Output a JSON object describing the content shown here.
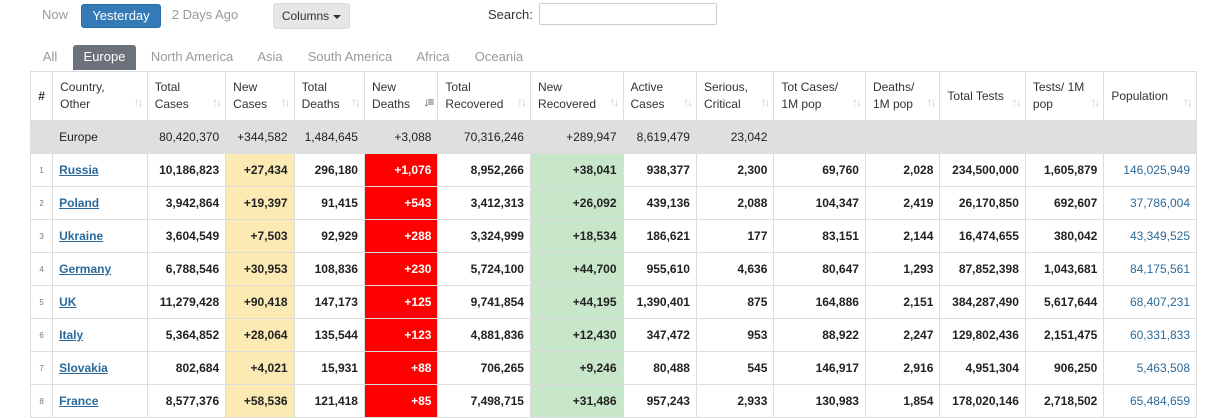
{
  "day_tabs": [
    "Now",
    "Yesterday",
    "2 Days Ago"
  ],
  "active_day": "Yesterday",
  "columns_label": "Columns",
  "search_label": "Search:",
  "search_value": "",
  "region_tabs": [
    "All",
    "Europe",
    "North America",
    "Asia",
    "South America",
    "Africa",
    "Oceania"
  ],
  "active_region": "Europe",
  "colors": {
    "primary_blue": "#337ab7",
    "new_cases_bg": "#fbeab4",
    "new_deaths_bg": "#ff0000",
    "new_recovered_bg": "#c8e6c9",
    "link_blue": "#2b6a9b"
  },
  "columns": [
    {
      "key": "num",
      "label": "#"
    },
    {
      "key": "country",
      "label": "Country, Other"
    },
    {
      "key": "total_cases",
      "label": "Total Cases"
    },
    {
      "key": "new_cases",
      "label": "New Cases"
    },
    {
      "key": "total_deaths",
      "label": "Total Deaths"
    },
    {
      "key": "new_deaths",
      "label": "New Deaths"
    },
    {
      "key": "total_recovered",
      "label": "Total Recovered"
    },
    {
      "key": "new_recovered",
      "label": "New Recovered"
    },
    {
      "key": "active_cases",
      "label": "Active Cases"
    },
    {
      "key": "serious",
      "label": "Serious, Critical"
    },
    {
      "key": "cases_per_m",
      "label": "Tot Cases/ 1M pop"
    },
    {
      "key": "deaths_per_m",
      "label": "Deaths/ 1M pop"
    },
    {
      "key": "total_tests",
      "label": "Total Tests"
    },
    {
      "key": "tests_per_m",
      "label": "Tests/ 1M pop"
    },
    {
      "key": "population",
      "label": "Population"
    }
  ],
  "total_row": {
    "country": "Europe",
    "total_cases": "80,420,370",
    "new_cases": "+344,582",
    "total_deaths": "1,484,645",
    "new_deaths": "+3,088",
    "total_recovered": "70,316,246",
    "new_recovered": "+289,947",
    "active_cases": "8,619,479",
    "serious": "23,042",
    "cases_per_m": "",
    "deaths_per_m": "",
    "total_tests": "",
    "tests_per_m": "",
    "population": ""
  },
  "rows": [
    {
      "num": "1",
      "country": "Russia",
      "total_cases": "10,186,823",
      "new_cases": "+27,434",
      "total_deaths": "296,180",
      "new_deaths": "+1,076",
      "total_recovered": "8,952,266",
      "new_recovered": "+38,041",
      "active_cases": "938,377",
      "serious": "2,300",
      "cases_per_m": "69,760",
      "deaths_per_m": "2,028",
      "total_tests": "234,500,000",
      "tests_per_m": "1,605,879",
      "population": "146,025,949"
    },
    {
      "num": "2",
      "country": "Poland",
      "total_cases": "3,942,864",
      "new_cases": "+19,397",
      "total_deaths": "91,415",
      "new_deaths": "+543",
      "total_recovered": "3,412,313",
      "new_recovered": "+26,092",
      "active_cases": "439,136",
      "serious": "2,088",
      "cases_per_m": "104,347",
      "deaths_per_m": "2,419",
      "total_tests": "26,170,850",
      "tests_per_m": "692,607",
      "population": "37,786,004"
    },
    {
      "num": "3",
      "country": "Ukraine",
      "total_cases": "3,604,549",
      "new_cases": "+7,503",
      "total_deaths": "92,929",
      "new_deaths": "+288",
      "total_recovered": "3,324,999",
      "new_recovered": "+18,534",
      "active_cases": "186,621",
      "serious": "177",
      "cases_per_m": "83,151",
      "deaths_per_m": "2,144",
      "total_tests": "16,474,655",
      "tests_per_m": "380,042",
      "population": "43,349,525"
    },
    {
      "num": "4",
      "country": "Germany",
      "total_cases": "6,788,546",
      "new_cases": "+30,953",
      "total_deaths": "108,836",
      "new_deaths": "+230",
      "total_recovered": "5,724,100",
      "new_recovered": "+44,700",
      "active_cases": "955,610",
      "serious": "4,636",
      "cases_per_m": "80,647",
      "deaths_per_m": "1,293",
      "total_tests": "87,852,398",
      "tests_per_m": "1,043,681",
      "population": "84,175,561"
    },
    {
      "num": "5",
      "country": "UK",
      "total_cases": "11,279,428",
      "new_cases": "+90,418",
      "total_deaths": "147,173",
      "new_deaths": "+125",
      "total_recovered": "9,741,854",
      "new_recovered": "+44,195",
      "active_cases": "1,390,401",
      "serious": "875",
      "cases_per_m": "164,886",
      "deaths_per_m": "2,151",
      "total_tests": "384,287,490",
      "tests_per_m": "5,617,644",
      "population": "68,407,231"
    },
    {
      "num": "6",
      "country": "Italy",
      "total_cases": "5,364,852",
      "new_cases": "+28,064",
      "total_deaths": "135,544",
      "new_deaths": "+123",
      "total_recovered": "4,881,836",
      "new_recovered": "+12,430",
      "active_cases": "347,472",
      "serious": "953",
      "cases_per_m": "88,922",
      "deaths_per_m": "2,247",
      "total_tests": "129,802,436",
      "tests_per_m": "2,151,475",
      "population": "60,331,833"
    },
    {
      "num": "7",
      "country": "Slovakia",
      "total_cases": "802,684",
      "new_cases": "+4,021",
      "total_deaths": "15,931",
      "new_deaths": "+88",
      "total_recovered": "706,265",
      "new_recovered": "+9,246",
      "active_cases": "80,488",
      "serious": "545",
      "cases_per_m": "146,917",
      "deaths_per_m": "2,916",
      "total_tests": "4,951,304",
      "tests_per_m": "906,250",
      "population": "5,463,508"
    },
    {
      "num": "8",
      "country": "France",
      "total_cases": "8,577,376",
      "new_cases": "+58,536",
      "total_deaths": "121,418",
      "new_deaths": "+85",
      "total_recovered": "7,498,715",
      "new_recovered": "+31,486",
      "active_cases": "957,243",
      "serious": "2,933",
      "cases_per_m": "130,983",
      "deaths_per_m": "1,854",
      "total_tests": "178,020,146",
      "tests_per_m": "2,718,502",
      "population": "65,484,659"
    }
  ]
}
